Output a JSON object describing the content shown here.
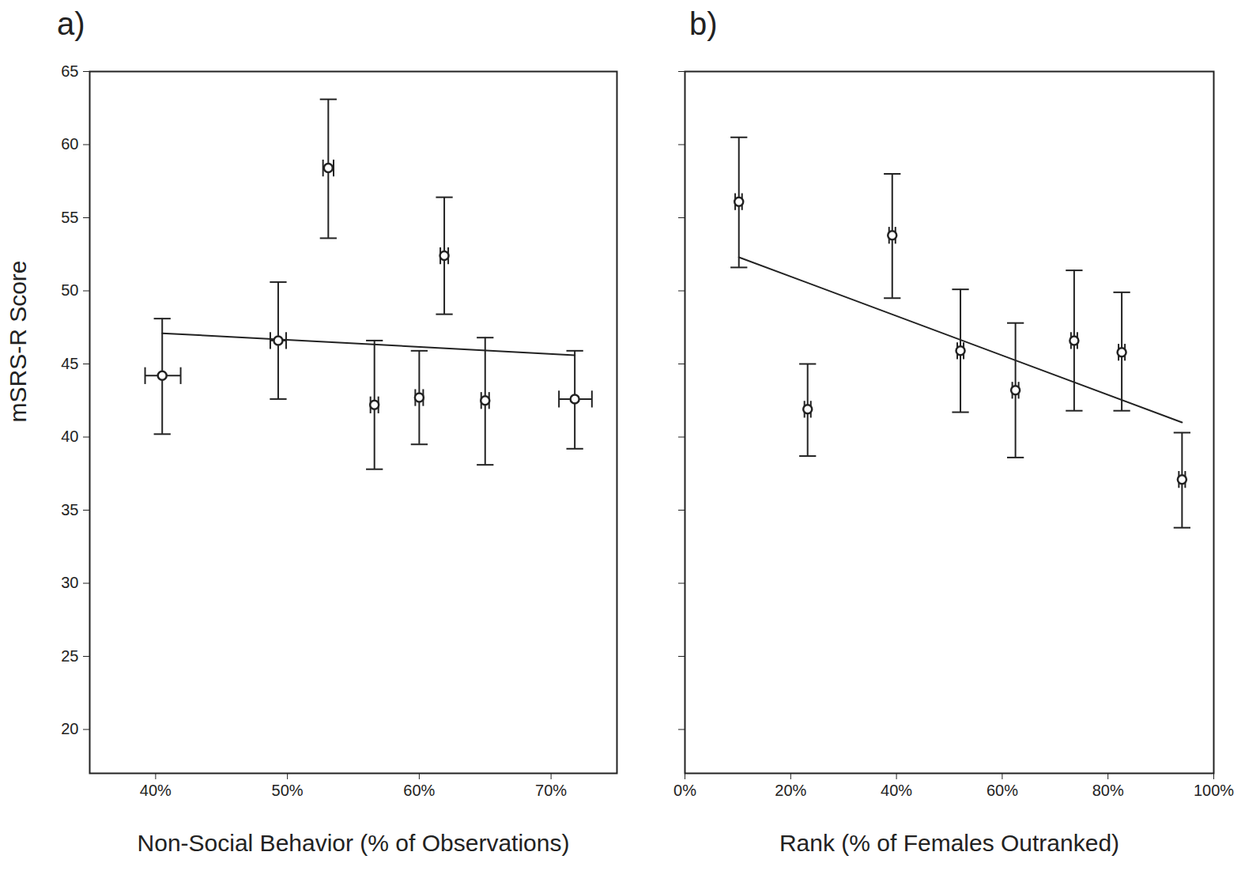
{
  "chart_data": [
    {
      "type": "scatter",
      "title": "a)",
      "x_label": "Non-Social Behavior (% of Observations)",
      "y_label": "mSRS-R Score",
      "x": [
        40.5,
        49.3,
        53.1,
        56.6,
        60.0,
        61.9,
        65.0,
        71.8
      ],
      "values": [
        44.2,
        46.6,
        58.4,
        42.2,
        42.7,
        52.4,
        42.5,
        42.6
      ],
      "y_lower": [
        40.2,
        42.6,
        53.6,
        37.8,
        39.5,
        48.4,
        38.1,
        39.2
      ],
      "y_upper": [
        48.1,
        50.6,
        63.1,
        46.6,
        45.9,
        56.4,
        46.8,
        45.9
      ],
      "x_lower": [
        39.2,
        48.7,
        52.7,
        56.3,
        59.7,
        61.6,
        64.7,
        70.6
      ],
      "x_upper": [
        41.9,
        49.9,
        53.5,
        56.9,
        60.3,
        62.2,
        65.3,
        73.1
      ],
      "fit_line": {
        "x": [
          40.5,
          71.8
        ],
        "y": [
          47.1,
          45.6
        ]
      },
      "color": "#222222",
      "marker": "circle",
      "xlim": [
        35,
        75
      ],
      "xticks": [
        {
          "value": 40,
          "label": "40%"
        },
        {
          "value": 50,
          "label": "50%"
        },
        {
          "value": 60,
          "label": "60%"
        },
        {
          "value": 70,
          "label": "70%"
        }
      ],
      "ylim": [
        17,
        65
      ],
      "yticks": [
        20,
        25,
        30,
        35,
        40,
        45,
        50,
        55,
        60,
        65
      ],
      "grid": false
    },
    {
      "type": "scatter",
      "title": "b)",
      "x_label": "Rank (% of Females Outranked)",
      "x": [
        10.2,
        23.2,
        39.2,
        52.1,
        62.5,
        73.6,
        82.6,
        94.0
      ],
      "values": [
        56.1,
        41.9,
        53.8,
        45.9,
        43.2,
        46.6,
        45.8,
        37.1
      ],
      "y_lower": [
        51.6,
        38.7,
        49.5,
        41.7,
        38.6,
        41.8,
        41.8,
        33.8
      ],
      "y_upper": [
        60.5,
        45.0,
        58.0,
        50.1,
        47.8,
        51.4,
        49.9,
        40.3
      ],
      "x_lower": [
        9.5,
        22.6,
        38.6,
        51.5,
        61.9,
        73.0,
        82.0,
        93.4
      ],
      "x_upper": [
        10.8,
        23.8,
        39.8,
        52.7,
        63.1,
        74.2,
        83.2,
        94.6
      ],
      "fit_line": {
        "x": [
          10.2,
          94.0
        ],
        "y": [
          52.3,
          41.0
        ]
      },
      "color": "#222222",
      "marker": "circle",
      "xlim": [
        0,
        100
      ],
      "xticks": [
        {
          "value": 0,
          "label": "0%"
        },
        {
          "value": 20,
          "label": "20%"
        },
        {
          "value": 40,
          "label": "40%"
        },
        {
          "value": 60,
          "label": "60%"
        },
        {
          "value": 80,
          "label": "80%"
        },
        {
          "value": 100,
          "label": "100%"
        }
      ],
      "ylim": [
        17,
        65
      ],
      "yticks": [
        20,
        25,
        30,
        35,
        40,
        45,
        50,
        55,
        60,
        65
      ],
      "tick_labels": "x",
      "grid": false
    }
  ]
}
